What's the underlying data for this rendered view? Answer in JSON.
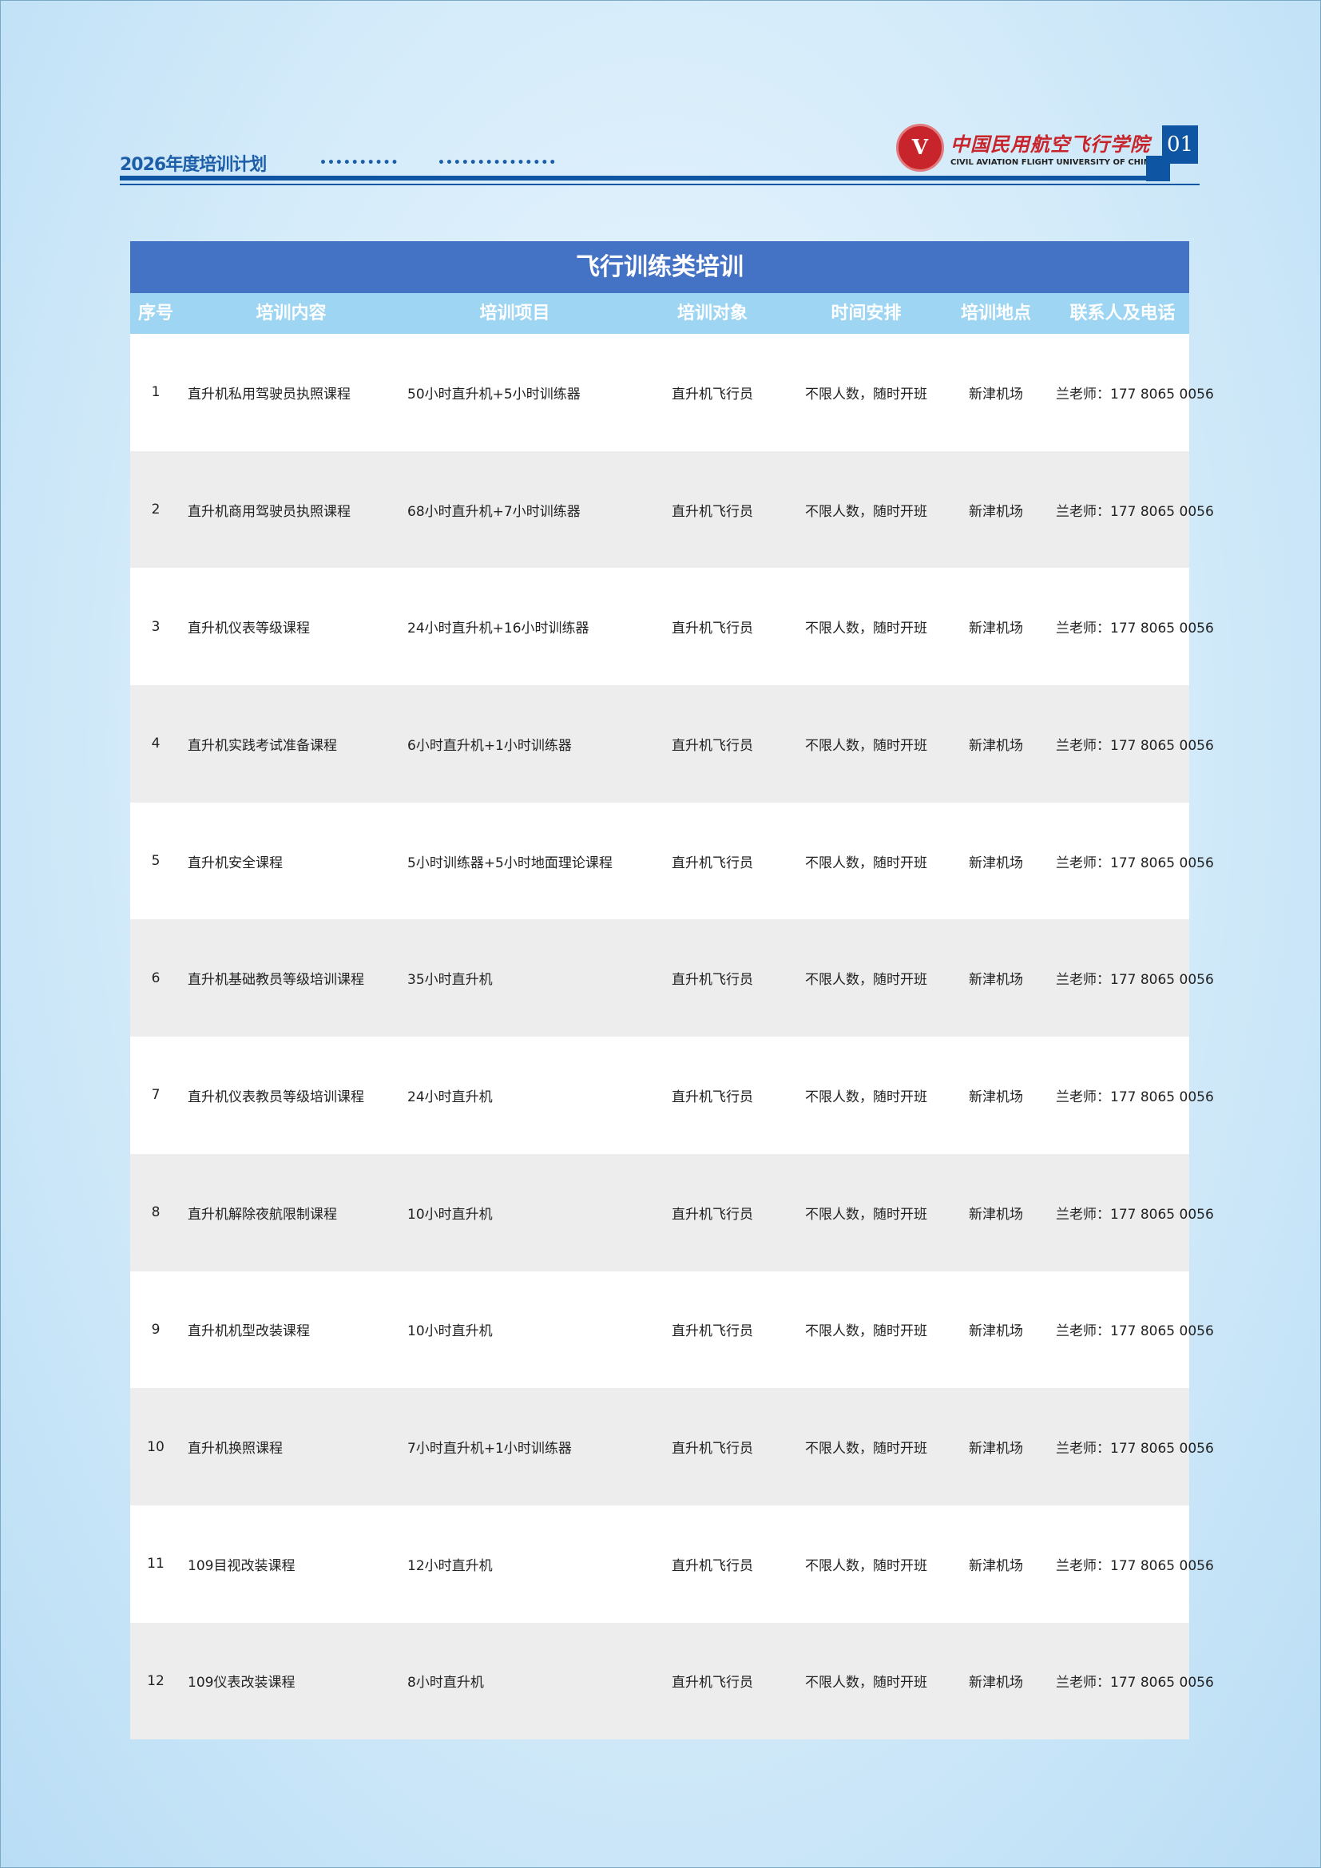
{
  "header": {
    "doc_title": "2026年度培训计划",
    "dots_1": "••••••••••",
    "dots_2": "•••••••••••••••",
    "logo_cn": "中国民用航空飞行学院",
    "logo_en": "CIVIL AVIATION FLIGHT UNIVERSITY OF CHINA",
    "page_number": "01"
  },
  "table": {
    "title": "飞行训练类培训",
    "columns": [
      "序号",
      "培训内容",
      "培训项目",
      "培训对象",
      "时间安排",
      "培训地点",
      "联系人及电话"
    ],
    "rows": [
      [
        "1",
        "直升机私用驾驶员执照课程",
        "50小时直升机+5小时训练器",
        "直升机飞行员",
        "不限人数，随时开班",
        "新津机场",
        "兰老师：177 8065 0056"
      ],
      [
        "2",
        "直升机商用驾驶员执照课程",
        "68小时直升机+7小时训练器",
        "直升机飞行员",
        "不限人数，随时开班",
        "新津机场",
        "兰老师：177 8065 0056"
      ],
      [
        "3",
        "直升机仪表等级课程",
        "24小时直升机+16小时训练器",
        "直升机飞行员",
        "不限人数，随时开班",
        "新津机场",
        "兰老师：177 8065 0056"
      ],
      [
        "4",
        "直升机实践考试准备课程",
        "6小时直升机+1小时训练器",
        "直升机飞行员",
        "不限人数，随时开班",
        "新津机场",
        "兰老师：177 8065 0056"
      ],
      [
        "5",
        "直升机安全课程",
        "5小时训练器+5小时地面理论课程",
        "直升机飞行员",
        "不限人数，随时开班",
        "新津机场",
        "兰老师：177 8065 0056"
      ],
      [
        "6",
        "直升机基础教员等级培训课程",
        "35小时直升机",
        "直升机飞行员",
        "不限人数，随时开班",
        "新津机场",
        "兰老师：177 8065 0056"
      ],
      [
        "7",
        "直升机仪表教员等级培训课程",
        "24小时直升机",
        "直升机飞行员",
        "不限人数，随时开班",
        "新津机场",
        "兰老师：177 8065 0056"
      ],
      [
        "8",
        "直升机解除夜航限制课程",
        "10小时直升机",
        "直升机飞行员",
        "不限人数，随时开班",
        "新津机场",
        "兰老师：177 8065 0056"
      ],
      [
        "9",
        "直升机机型改装课程",
        "10小时直升机",
        "直升机飞行员",
        "不限人数，随时开班",
        "新津机场",
        "兰老师：177 8065 0056"
      ],
      [
        "10",
        "直升机换照课程",
        "7小时直升机+1小时训练器",
        "直升机飞行员",
        "不限人数，随时开班",
        "新津机场",
        "兰老师：177 8065 0056"
      ],
      [
        "11",
        "109目视改装课程",
        "12小时直升机",
        "直升机飞行员",
        "不限人数，随时开班",
        "新津机场",
        "兰老师：177 8065 0056"
      ],
      [
        "12",
        "109仪表改装课程",
        "8小时直升机",
        "直升机飞行员",
        "不限人数，随时开班",
        "新津机场",
        "兰老师：177 8065 0056"
      ]
    ]
  },
  "colors": {
    "brand_blue": "#0e56a3",
    "title_bar": "#4472c4",
    "header_row": "#9dd5f3",
    "logo_red": "#c8242b"
  }
}
